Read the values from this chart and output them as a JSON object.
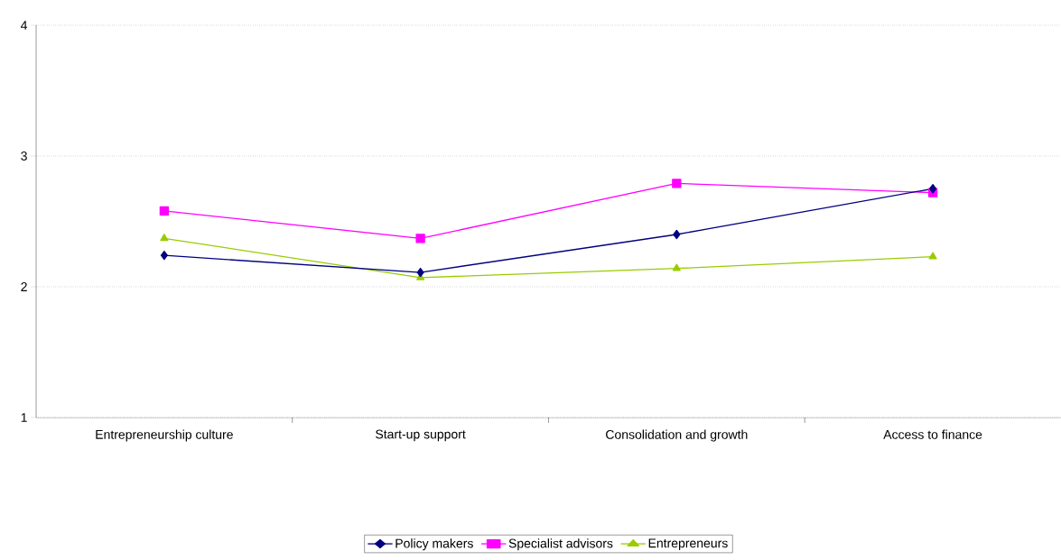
{
  "chart_data": {
    "type": "line",
    "categories": [
      "Entrepreneurship culture",
      "Start-up support",
      "Consolidation and growth",
      "Access to finance"
    ],
    "series": [
      {
        "name": "Policy makers",
        "color": "#000080",
        "marker": "diamond",
        "values": [
          2.24,
          2.11,
          2.4,
          2.75
        ]
      },
      {
        "name": "Specialist advisors",
        "color": "#ff00ff",
        "marker": "square",
        "values": [
          2.58,
          2.37,
          2.79,
          2.72
        ]
      },
      {
        "name": "Entrepreneurs",
        "color": "#99cc00",
        "marker": "triangle",
        "values": [
          2.37,
          2.07,
          2.14,
          2.23
        ]
      }
    ],
    "ylim": [
      1,
      4
    ],
    "yticks": [
      1,
      2,
      3,
      4
    ],
    "grid": "y",
    "legend": "bottom",
    "line_style": "solid"
  }
}
